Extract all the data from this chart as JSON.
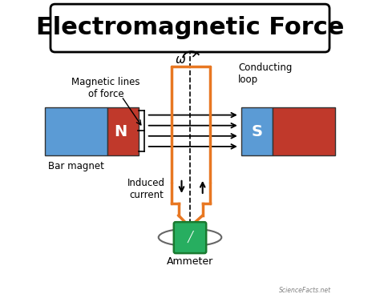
{
  "title": "Electromagnetic Force",
  "title_fontsize": 22,
  "bg_color": "#ffffff",
  "orange_color": "#E87722",
  "blue_color": "#5B9BD5",
  "red_color": "#C0392B",
  "green_color": "#27AE60",
  "gray_color": "#888888",
  "labels": {
    "magnetic_lines": "Magnetic lines\nof force",
    "conducting_loop": "Conducting\nloop",
    "bar_magnet": "Bar magnet",
    "induced_current": "Induced\ncurrent",
    "ammeter": "Ammeter",
    "omega": "ω",
    "N": "N",
    "S": "S",
    "watermark": "ScienceFacts.net"
  }
}
